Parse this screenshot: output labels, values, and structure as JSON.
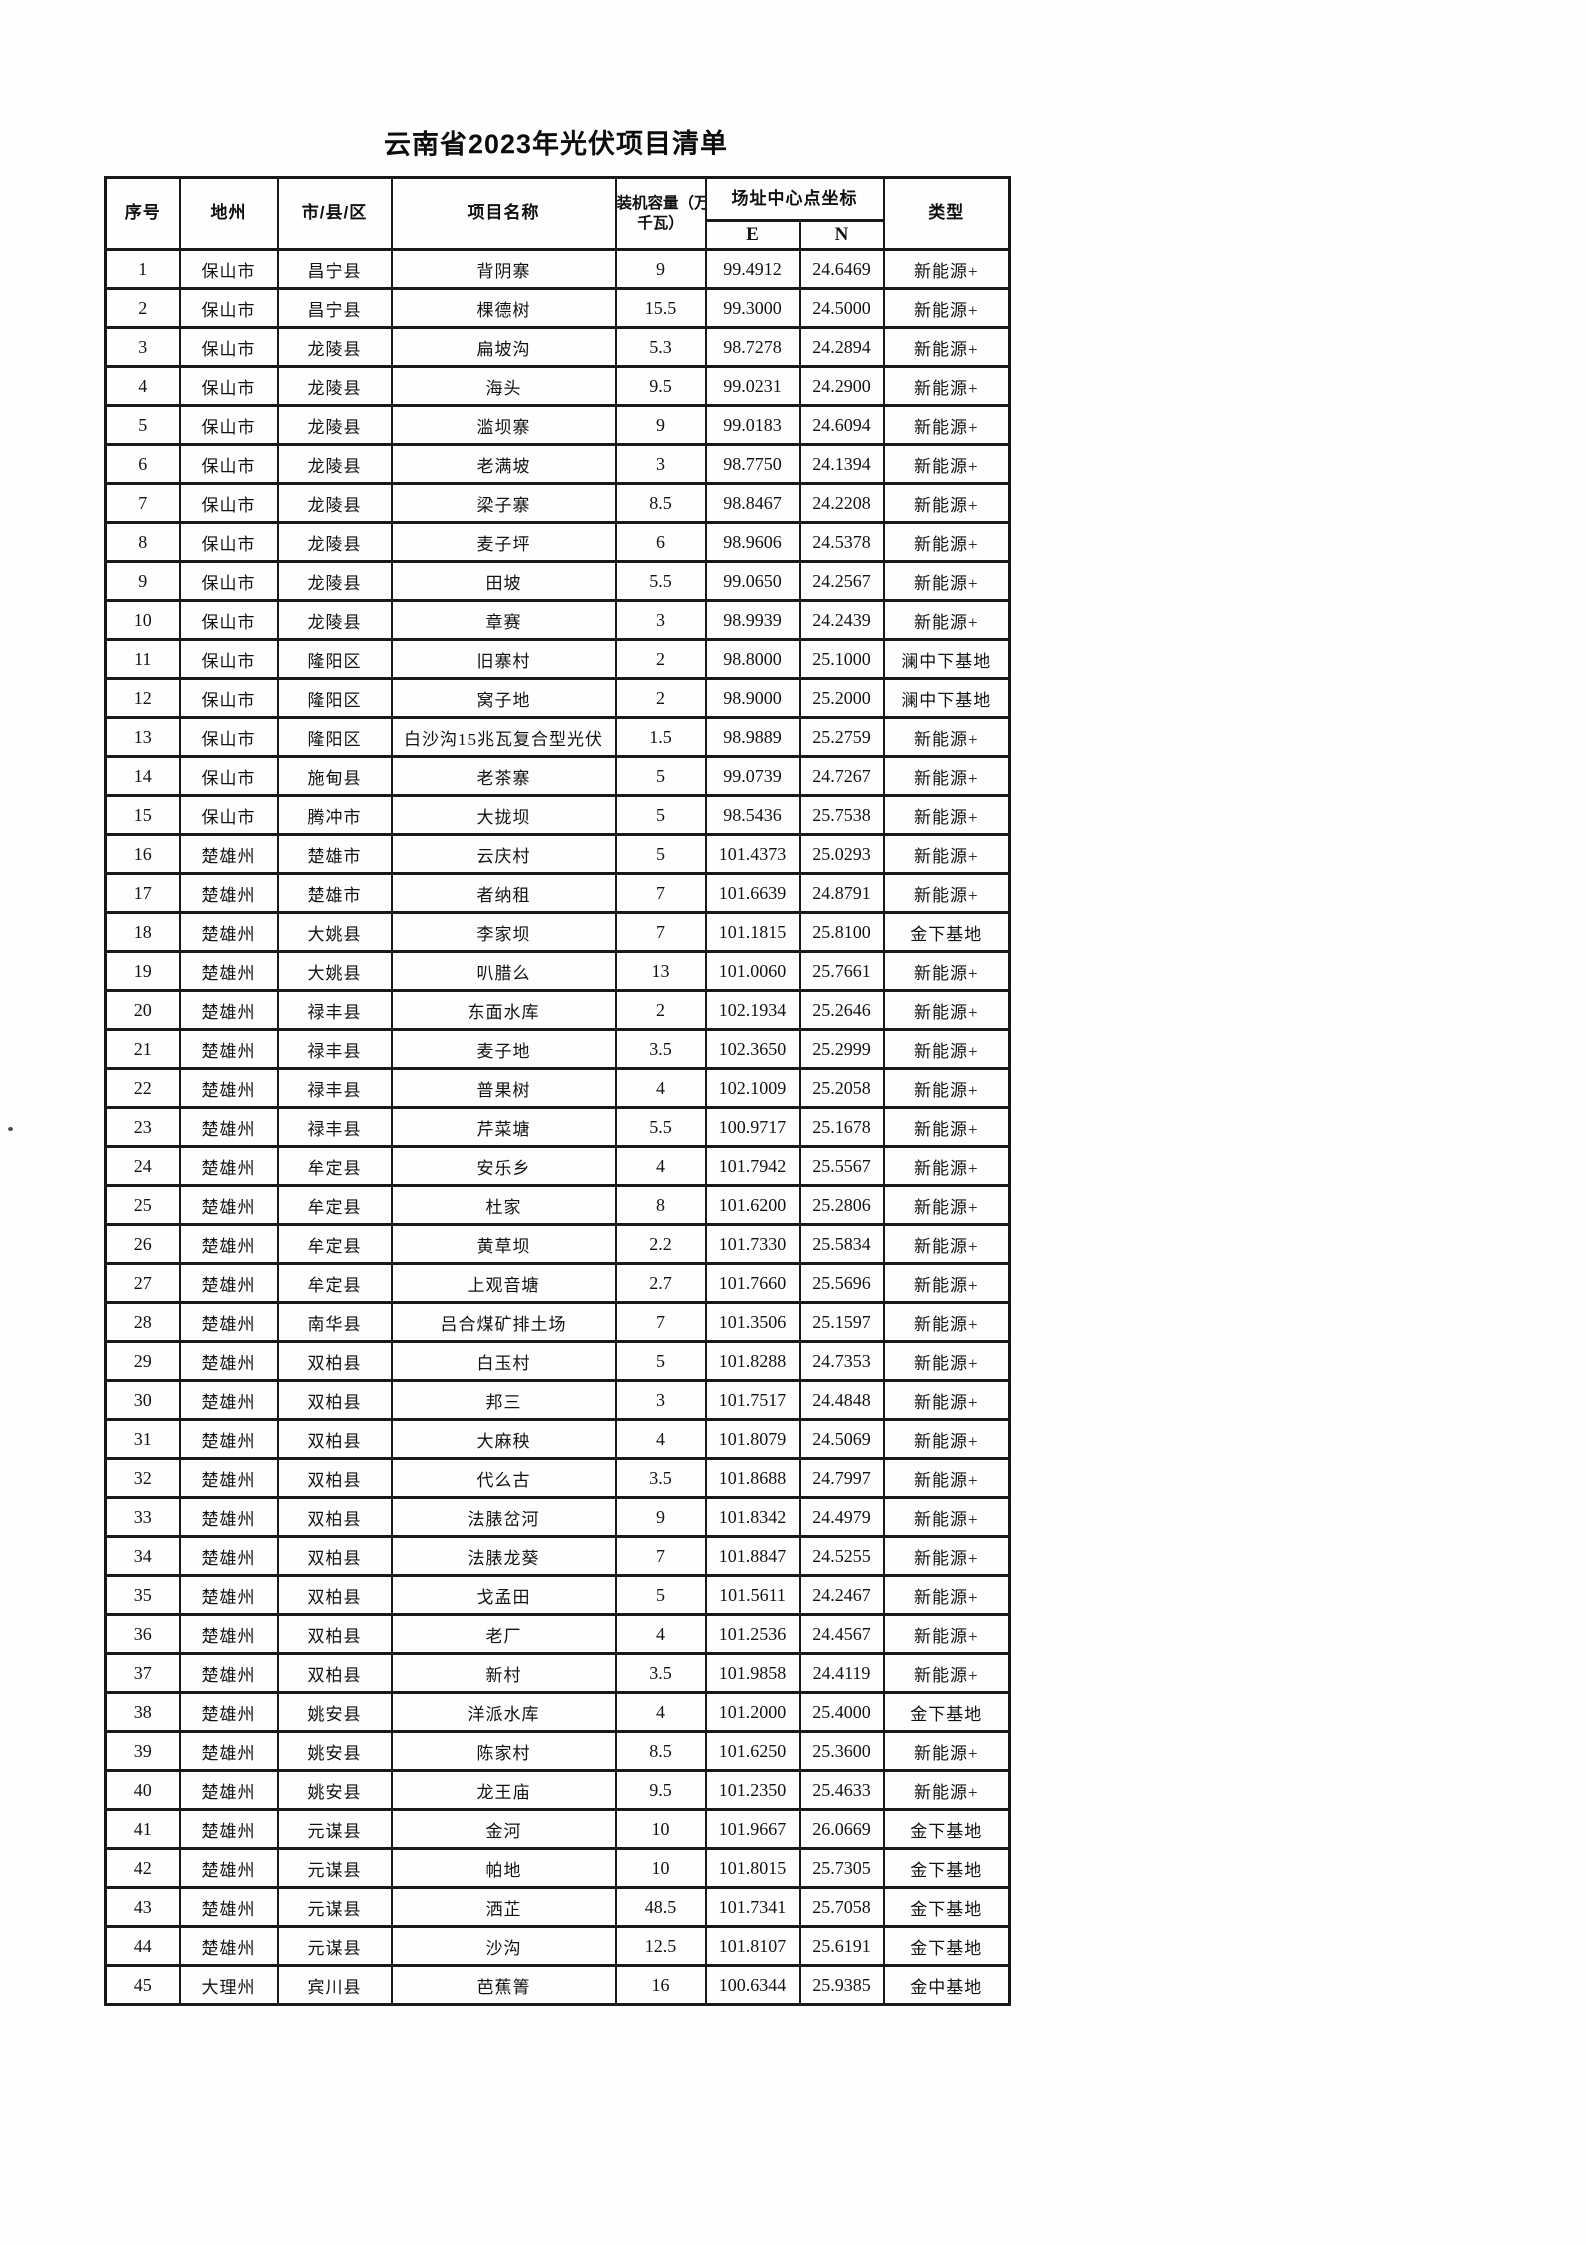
{
  "page": {
    "title": "云南省2023年光伏项目清单"
  },
  "table": {
    "headers": {
      "index": "序号",
      "prefecture": "地州",
      "county": "市/县/区",
      "project": "项目名称",
      "capacity_line1": "装机容量（万",
      "capacity_line2": "千瓦）",
      "coords": "场址中心点坐标",
      "e": "E",
      "n": "N",
      "type": "类型"
    },
    "rows": [
      [
        "1",
        "保山市",
        "昌宁县",
        "背阴寨",
        "9",
        "99.4912",
        "24.6469",
        "新能源+"
      ],
      [
        "2",
        "保山市",
        "昌宁县",
        "棵德树",
        "15.5",
        "99.3000",
        "24.5000",
        "新能源+"
      ],
      [
        "3",
        "保山市",
        "龙陵县",
        "扁坡沟",
        "5.3",
        "98.7278",
        "24.2894",
        "新能源+"
      ],
      [
        "4",
        "保山市",
        "龙陵县",
        "海头",
        "9.5",
        "99.0231",
        "24.2900",
        "新能源+"
      ],
      [
        "5",
        "保山市",
        "龙陵县",
        "滥坝寨",
        "9",
        "99.0183",
        "24.6094",
        "新能源+"
      ],
      [
        "6",
        "保山市",
        "龙陵县",
        "老满坡",
        "3",
        "98.7750",
        "24.1394",
        "新能源+"
      ],
      [
        "7",
        "保山市",
        "龙陵县",
        "梁子寨",
        "8.5",
        "98.8467",
        "24.2208",
        "新能源+"
      ],
      [
        "8",
        "保山市",
        "龙陵县",
        "麦子坪",
        "6",
        "98.9606",
        "24.5378",
        "新能源+"
      ],
      [
        "9",
        "保山市",
        "龙陵县",
        "田坡",
        "5.5",
        "99.0650",
        "24.2567",
        "新能源+"
      ],
      [
        "10",
        "保山市",
        "龙陵县",
        "章赛",
        "3",
        "98.9939",
        "24.2439",
        "新能源+"
      ],
      [
        "11",
        "保山市",
        "隆阳区",
        "旧寨村",
        "2",
        "98.8000",
        "25.1000",
        "澜中下基地"
      ],
      [
        "12",
        "保山市",
        "隆阳区",
        "窝子地",
        "2",
        "98.9000",
        "25.2000",
        "澜中下基地"
      ],
      [
        "13",
        "保山市",
        "隆阳区",
        "白沙沟15兆瓦复合型光伏",
        "1.5",
        "98.9889",
        "25.2759",
        "新能源+"
      ],
      [
        "14",
        "保山市",
        "施甸县",
        "老茶寨",
        "5",
        "99.0739",
        "24.7267",
        "新能源+"
      ],
      [
        "15",
        "保山市",
        "腾冲市",
        "大拢坝",
        "5",
        "98.5436",
        "25.7538",
        "新能源+"
      ],
      [
        "16",
        "楚雄州",
        "楚雄市",
        "云庆村",
        "5",
        "101.4373",
        "25.0293",
        "新能源+"
      ],
      [
        "17",
        "楚雄州",
        "楚雄市",
        "者纳租",
        "7",
        "101.6639",
        "24.8791",
        "新能源+"
      ],
      [
        "18",
        "楚雄州",
        "大姚县",
        "李家坝",
        "7",
        "101.1815",
        "25.8100",
        "金下基地"
      ],
      [
        "19",
        "楚雄州",
        "大姚县",
        "叭腊么",
        "13",
        "101.0060",
        "25.7661",
        "新能源+"
      ],
      [
        "20",
        "楚雄州",
        "禄丰县",
        "东面水库",
        "2",
        "102.1934",
        "25.2646",
        "新能源+"
      ],
      [
        "21",
        "楚雄州",
        "禄丰县",
        "麦子地",
        "3.5",
        "102.3650",
        "25.2999",
        "新能源+"
      ],
      [
        "22",
        "楚雄州",
        "禄丰县",
        "普果树",
        "4",
        "102.1009",
        "25.2058",
        "新能源+"
      ],
      [
        "23",
        "楚雄州",
        "禄丰县",
        "芹菜塘",
        "5.5",
        "100.9717",
        "25.1678",
        "新能源+"
      ],
      [
        "24",
        "楚雄州",
        "牟定县",
        "安乐乡",
        "4",
        "101.7942",
        "25.5567",
        "新能源+"
      ],
      [
        "25",
        "楚雄州",
        "牟定县",
        "杜家",
        "8",
        "101.6200",
        "25.2806",
        "新能源+"
      ],
      [
        "26",
        "楚雄州",
        "牟定县",
        "黄草坝",
        "2.2",
        "101.7330",
        "25.5834",
        "新能源+"
      ],
      [
        "27",
        "楚雄州",
        "牟定县",
        "上观音塘",
        "2.7",
        "101.7660",
        "25.5696",
        "新能源+"
      ],
      [
        "28",
        "楚雄州",
        "南华县",
        "吕合煤矿排土场",
        "7",
        "101.3506",
        "25.1597",
        "新能源+"
      ],
      [
        "29",
        "楚雄州",
        "双柏县",
        "白玉村",
        "5",
        "101.8288",
        "24.7353",
        "新能源+"
      ],
      [
        "30",
        "楚雄州",
        "双柏县",
        "邦三",
        "3",
        "101.7517",
        "24.4848",
        "新能源+"
      ],
      [
        "31",
        "楚雄州",
        "双柏县",
        "大麻秧",
        "4",
        "101.8079",
        "24.5069",
        "新能源+"
      ],
      [
        "32",
        "楚雄州",
        "双柏县",
        "代么古",
        "3.5",
        "101.8688",
        "24.7997",
        "新能源+"
      ],
      [
        "33",
        "楚雄州",
        "双柏县",
        "法脿岔河",
        "9",
        "101.8342",
        "24.4979",
        "新能源+"
      ],
      [
        "34",
        "楚雄州",
        "双柏县",
        "法脿龙葵",
        "7",
        "101.8847",
        "24.5255",
        "新能源+"
      ],
      [
        "35",
        "楚雄州",
        "双柏县",
        "戈孟田",
        "5",
        "101.5611",
        "24.2467",
        "新能源+"
      ],
      [
        "36",
        "楚雄州",
        "双柏县",
        "老厂",
        "4",
        "101.2536",
        "24.4567",
        "新能源+"
      ],
      [
        "37",
        "楚雄州",
        "双柏县",
        "新村",
        "3.5",
        "101.9858",
        "24.4119",
        "新能源+"
      ],
      [
        "38",
        "楚雄州",
        "姚安县",
        "洋派水库",
        "4",
        "101.2000",
        "25.4000",
        "金下基地"
      ],
      [
        "39",
        "楚雄州",
        "姚安县",
        "陈家村",
        "8.5",
        "101.6250",
        "25.3600",
        "新能源+"
      ],
      [
        "40",
        "楚雄州",
        "姚安县",
        "龙王庙",
        "9.5",
        "101.2350",
        "25.4633",
        "新能源+"
      ],
      [
        "41",
        "楚雄州",
        "元谋县",
        "金河",
        "10",
        "101.9667",
        "26.0669",
        "金下基地"
      ],
      [
        "42",
        "楚雄州",
        "元谋县",
        "帕地",
        "10",
        "101.8015",
        "25.7305",
        "金下基地"
      ],
      [
        "43",
        "楚雄州",
        "元谋县",
        "洒芷",
        "48.5",
        "101.7341",
        "25.7058",
        "金下基地"
      ],
      [
        "44",
        "楚雄州",
        "元谋县",
        "沙沟",
        "12.5",
        "101.8107",
        "25.6191",
        "金下基地"
      ],
      [
        "45",
        "大理州",
        "宾川县",
        "芭蕉箐",
        "16",
        "100.6344",
        "25.9385",
        "金中基地"
      ]
    ]
  }
}
